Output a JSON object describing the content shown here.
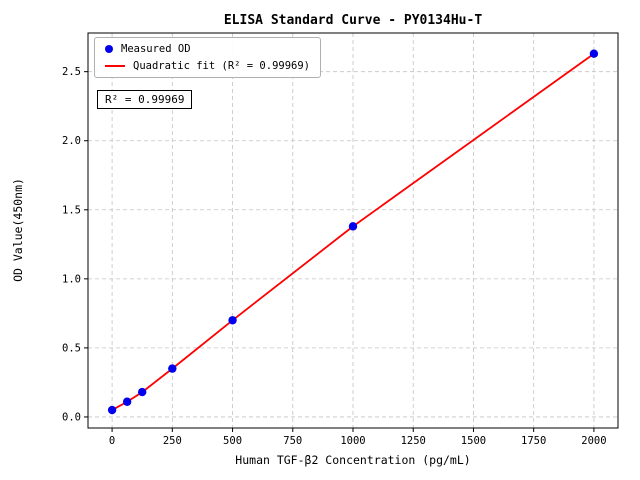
{
  "chart_data": {
    "type": "scatter",
    "title": "ELISA Standard Curve - PY0134Hu-T",
    "xlabel": "Human TGF-β2 Concentration (pg/mL)",
    "ylabel": "OD Value(450nm)",
    "annotation": "R² = 0.99969",
    "r_squared": 0.99969,
    "series": [
      {
        "name": "Measured OD",
        "type": "scatter",
        "color": "#0000ee",
        "x": [
          0,
          62.5,
          125,
          250,
          500,
          1000,
          2000
        ],
        "y": [
          0.05,
          0.11,
          0.18,
          0.35,
          0.7,
          1.38,
          2.63
        ]
      },
      {
        "name": "Quadratic fit (R² = 0.99969)",
        "type": "line",
        "color": "#ff0000",
        "x": [
          0,
          62.5,
          125,
          250,
          500,
          1000,
          2000
        ],
        "y": [
          0.05,
          0.11,
          0.18,
          0.35,
          0.7,
          1.38,
          2.63
        ]
      }
    ],
    "xticks": [
      0,
      250,
      500,
      750,
      1000,
      1250,
      1500,
      1750,
      2000
    ],
    "yticks": [
      0.0,
      0.5,
      1.0,
      1.5,
      2.0,
      2.5
    ],
    "xlim": [
      -100,
      2100
    ],
    "ylim": [
      -0.08,
      2.78
    ],
    "grid": true,
    "grid_color": "#c3c3c3",
    "legend_position": "upper left"
  }
}
